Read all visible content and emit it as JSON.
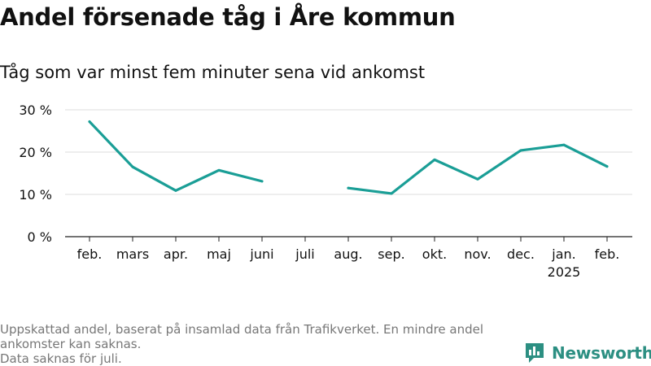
{
  "title": "Andel försenade tåg i Åre kommun",
  "subtitle": "Tåg som var minst fem minuter sena vid ankomst",
  "footnote": [
    "Uppskattad andel, baserat på insamlad data från Trafikverket. En mindre andel ankomster kan saknas.",
    "Data saknas för juli."
  ],
  "brand": {
    "name": "Newsworthy"
  },
  "colors": {
    "line": "#1a9e96",
    "grid": "#dddddd",
    "text": "#111111",
    "note": "#777777",
    "brand": "#2c8f82"
  },
  "chart_data": {
    "type": "line",
    "title": "Andel försenade tåg i Åre kommun",
    "subtitle": "Tåg som var minst fem minuter sena vid ankomst",
    "categories": [
      "feb.",
      "mars",
      "apr.",
      "maj",
      "juni",
      "juli",
      "aug.",
      "sep.",
      "okt.",
      "nov.",
      "dec.",
      "jan.",
      "feb."
    ],
    "category_sublabels": [
      "",
      "",
      "",
      "",
      "",
      "",
      "",
      "",
      "",
      "",
      "",
      "2025",
      ""
    ],
    "values": [
      27.2,
      16.5,
      10.9,
      15.7,
      13.1,
      null,
      11.5,
      10.2,
      18.2,
      13.6,
      20.4,
      21.7,
      16.6
    ],
    "y_ticks": [
      0,
      10,
      20,
      30
    ],
    "y_tick_labels": [
      "0 %",
      "10 %",
      "20 %",
      "30 %"
    ],
    "ylim": [
      0,
      30
    ],
    "xlabel": "",
    "ylabel": "",
    "grid": true,
    "legend": "none"
  }
}
